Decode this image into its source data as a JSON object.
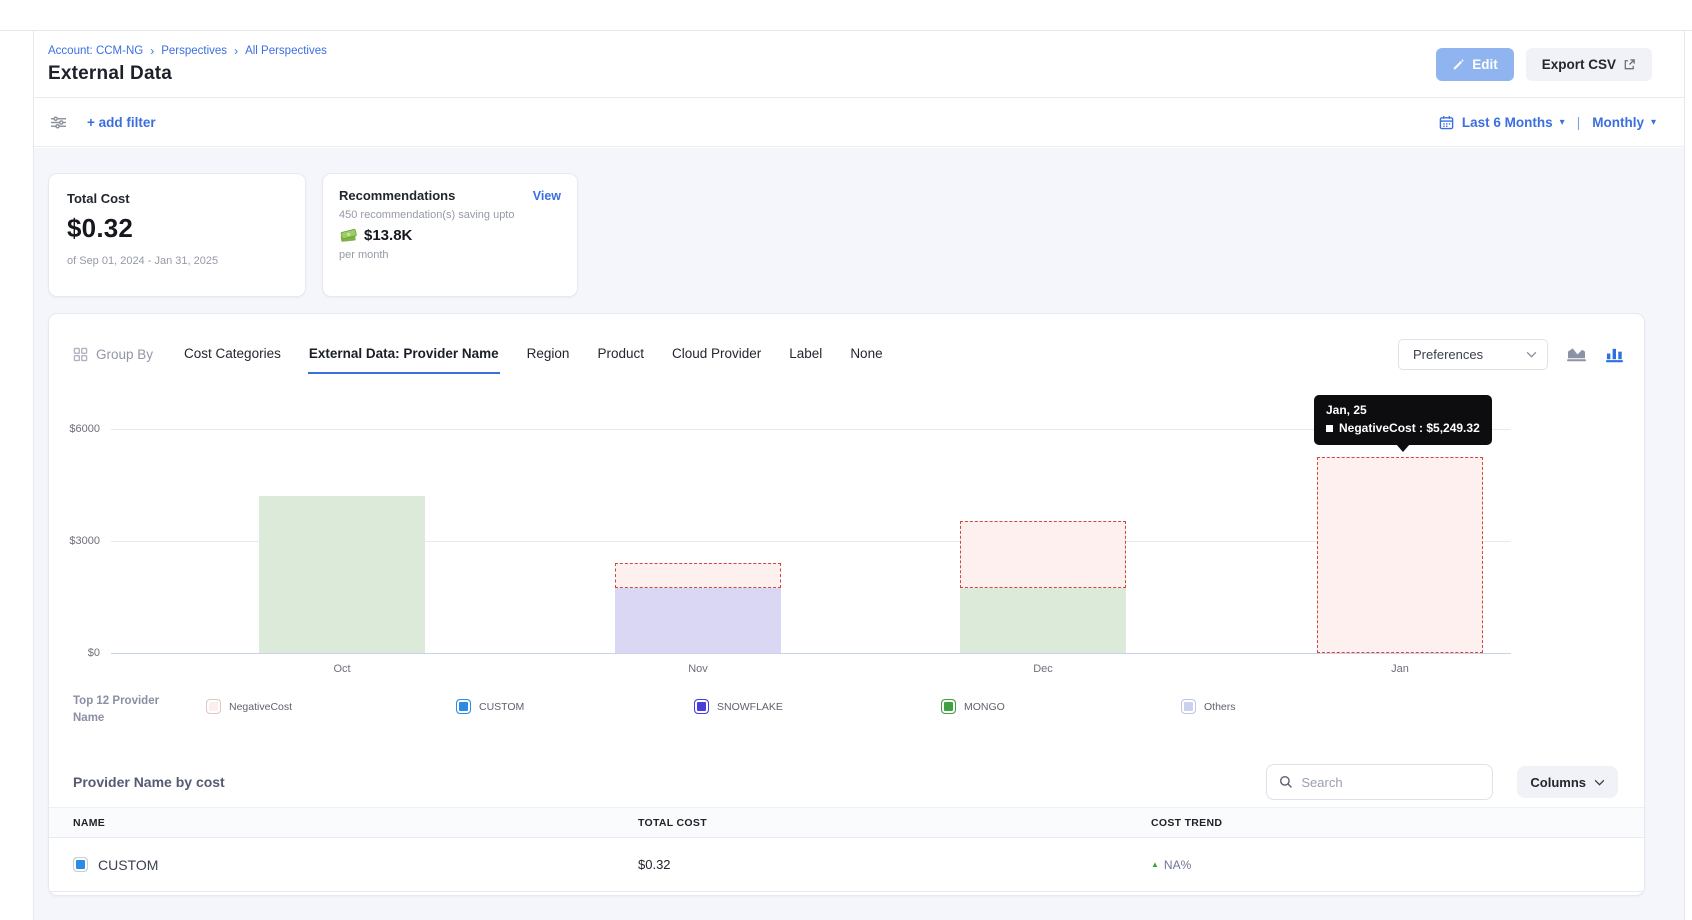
{
  "header": {
    "breadcrumb": [
      "Account: CCM-NG",
      "Perspectives",
      "All Perspectives"
    ],
    "title": "External Data",
    "edit_label": "Edit",
    "export_label": "Export CSV"
  },
  "filterbar": {
    "add_filter_label": "+ add filter",
    "date_range_label": "Last 6 Months",
    "granularity_label": "Monthly"
  },
  "cards": {
    "total_cost": {
      "title": "Total Cost",
      "value": "$0.32",
      "period": "of Sep 01, 2024 - Jan 31, 2025"
    },
    "recommendations": {
      "title": "Recommendations",
      "view_label": "View",
      "subtitle": "450 recommendation(s) saving upto",
      "amount": "$13.8K",
      "per": "per month"
    }
  },
  "groupby": {
    "label": "Group By",
    "tabs": [
      {
        "label": "Cost Categories",
        "active": false
      },
      {
        "label": "External Data: Provider Name",
        "active": true
      },
      {
        "label": "Region",
        "active": false
      },
      {
        "label": "Product",
        "active": false
      },
      {
        "label": "Cloud Provider",
        "active": false
      },
      {
        "label": "Label",
        "active": false
      },
      {
        "label": "None",
        "active": false
      }
    ],
    "preferences_label": "Preferences"
  },
  "chart_data": {
    "type": "bar",
    "stacked": true,
    "categories": [
      "Oct",
      "Nov",
      "Dec",
      "Jan"
    ],
    "y_ticks": [
      0,
      3000,
      6000
    ],
    "y_tick_labels": [
      "$0",
      "$3000",
      "$6000"
    ],
    "ylim": [
      0,
      6400
    ],
    "grid": true,
    "legend_position": "bottom",
    "series": [
      {
        "name": "MONGO",
        "values": [
          4216,
          0,
          1740,
          0
        ],
        "fill": "#dcebd9",
        "style": "solid"
      },
      {
        "name": "SNOWFLAKE",
        "values": [
          0,
          1730,
          0,
          0
        ],
        "fill": "#dad7f4",
        "style": "solid"
      },
      {
        "name": "NegativeCost",
        "values": [
          0,
          670,
          1800,
          5249.32
        ],
        "fill": "#fdf0ee",
        "border": "#d0493f",
        "style": "dashed"
      }
    ]
  },
  "tooltip": {
    "title": "Jan, 25",
    "text": "NegativeCost : $5,249.32"
  },
  "legend": {
    "title": "Top 12 Provider Name",
    "items": [
      {
        "label": "NegativeCost",
        "fill": "#fbeeec",
        "border": "#e0c6c4"
      },
      {
        "label": "CUSTOM",
        "fill": "#2d8be8",
        "border": "#2d8be8"
      },
      {
        "label": "SNOWFLAKE",
        "fill": "#4a3ed9",
        "border": "#4a3ed9"
      },
      {
        "label": "MONGO",
        "fill": "#3fa142",
        "border": "#3fa142"
      },
      {
        "label": "Others",
        "fill": "#cdd1f0",
        "border": "#c0c5ea"
      }
    ]
  },
  "table": {
    "title": "Provider Name by cost",
    "search_placeholder": "Search",
    "columns_label": "Columns",
    "headers": [
      "NAME",
      "TOTAL COST",
      "COST TREND"
    ],
    "rows": [
      {
        "name": "CUSTOM",
        "swatch": "#2d8be8",
        "total_cost": "$0.32",
        "trend": "NA%",
        "trend_direction": "up"
      }
    ]
  },
  "colors": {
    "accent_blue": "#3b6fe0",
    "edit_button_bg": "#8fb4ef",
    "export_button_bg": "#f0f2f7",
    "content_bg": "#f4f6fb",
    "panel_border": "#e7e9f0",
    "title_text": "#1d212a",
    "body_text": "#22262e",
    "muted_text": "#959aa8",
    "grid_line": "#e8e9ed",
    "axis_line": "#c9d2ec",
    "tooltip_bg": "#0d0d0f",
    "custom_blue": "#2d8be8",
    "snowflake_indigo": "#4a3ed9",
    "mongo_green": "#3fa142",
    "others_lavender": "#cdd1f0",
    "negative_fill": "#fdf0ee",
    "negative_border": "#d0493f",
    "trend_green": "#3fa142",
    "savings_green": "#8bc34a"
  }
}
